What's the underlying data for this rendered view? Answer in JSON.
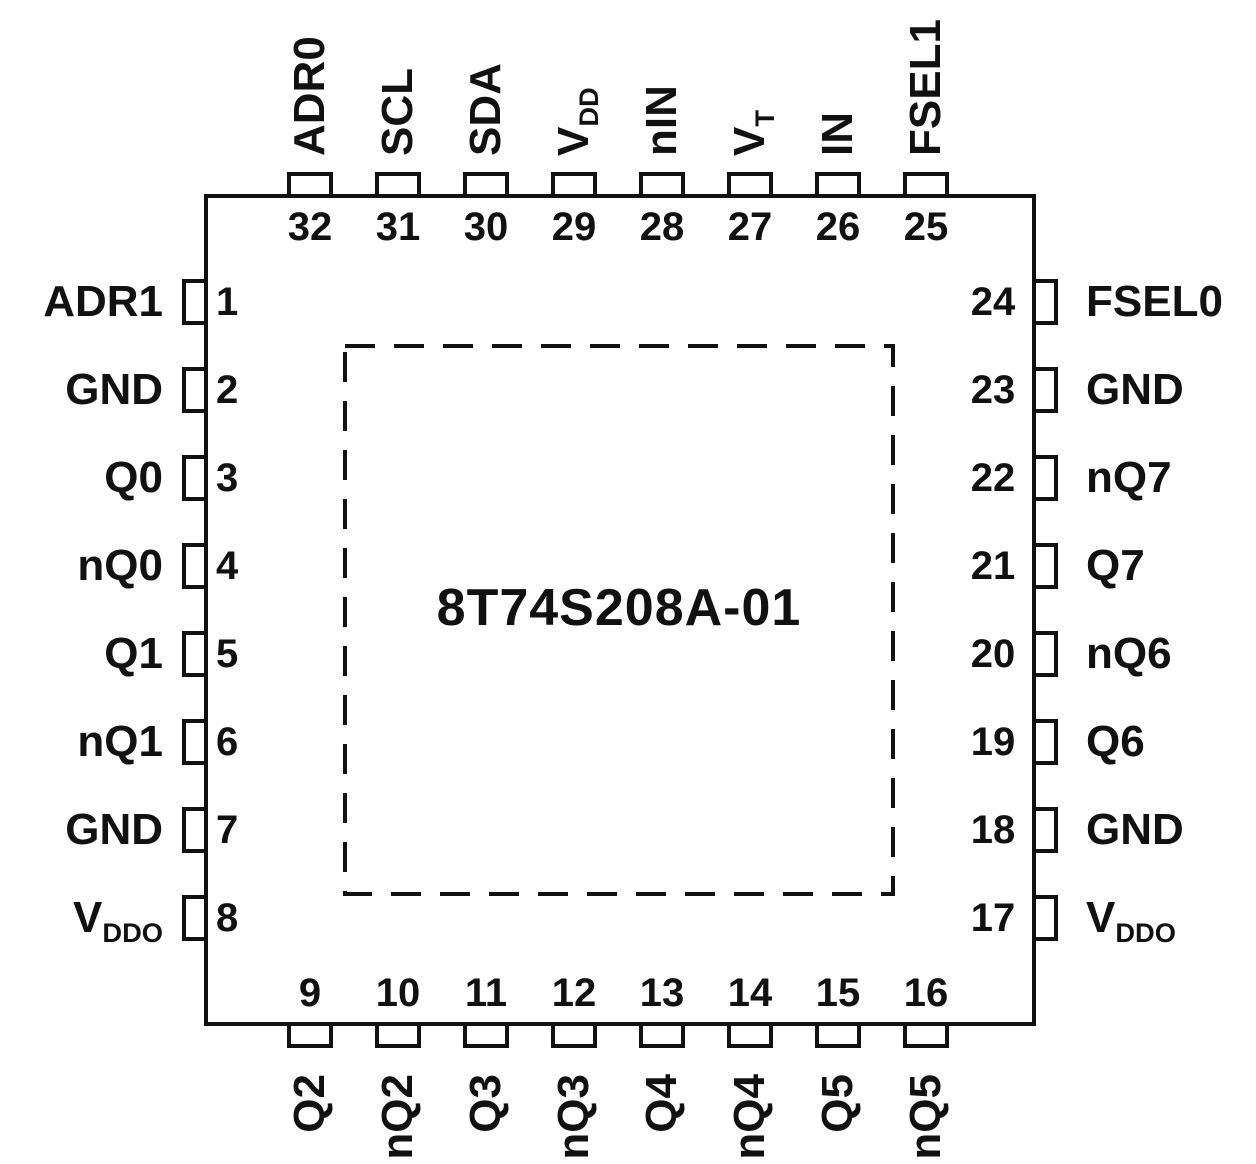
{
  "diagram": {
    "part_number": "8T74S208A-01",
    "package_pin_count": 32,
    "colors": {
      "line": "#111111",
      "text": "#111111",
      "background": "#ffffff"
    },
    "pins": {
      "top": [
        {
          "num": "32",
          "label": "ADR0"
        },
        {
          "num": "31",
          "label": "SCL"
        },
        {
          "num": "30",
          "label": "SDA"
        },
        {
          "num": "29",
          "label": "V_DD"
        },
        {
          "num": "28",
          "label": "nIN"
        },
        {
          "num": "27",
          "label": "V_T"
        },
        {
          "num": "26",
          "label": "IN"
        },
        {
          "num": "25",
          "label": "FSEL1"
        }
      ],
      "left": [
        {
          "num": "1",
          "label": "ADR1"
        },
        {
          "num": "2",
          "label": "GND"
        },
        {
          "num": "3",
          "label": "Q0"
        },
        {
          "num": "4",
          "label": "nQ0"
        },
        {
          "num": "5",
          "label": "Q1"
        },
        {
          "num": "6",
          "label": "nQ1"
        },
        {
          "num": "7",
          "label": "GND"
        },
        {
          "num": "8",
          "label": "V_DDO"
        }
      ],
      "right": [
        {
          "num": "24",
          "label": "FSEL0"
        },
        {
          "num": "23",
          "label": "GND"
        },
        {
          "num": "22",
          "label": "nQ7"
        },
        {
          "num": "21",
          "label": "Q7"
        },
        {
          "num": "20",
          "label": "nQ6"
        },
        {
          "num": "19",
          "label": "Q6"
        },
        {
          "num": "18",
          "label": "GND"
        },
        {
          "num": "17",
          "label": "V_DDO"
        }
      ],
      "bottom": [
        {
          "num": "9",
          "label": "Q2"
        },
        {
          "num": "10",
          "label": "nQ2"
        },
        {
          "num": "11",
          "label": "Q3"
        },
        {
          "num": "12",
          "label": "nQ3"
        },
        {
          "num": "13",
          "label": "Q4"
        },
        {
          "num": "14",
          "label": "nQ4"
        },
        {
          "num": "15",
          "label": "Q5"
        },
        {
          "num": "16",
          "label": "nQ5"
        }
      ]
    }
  }
}
